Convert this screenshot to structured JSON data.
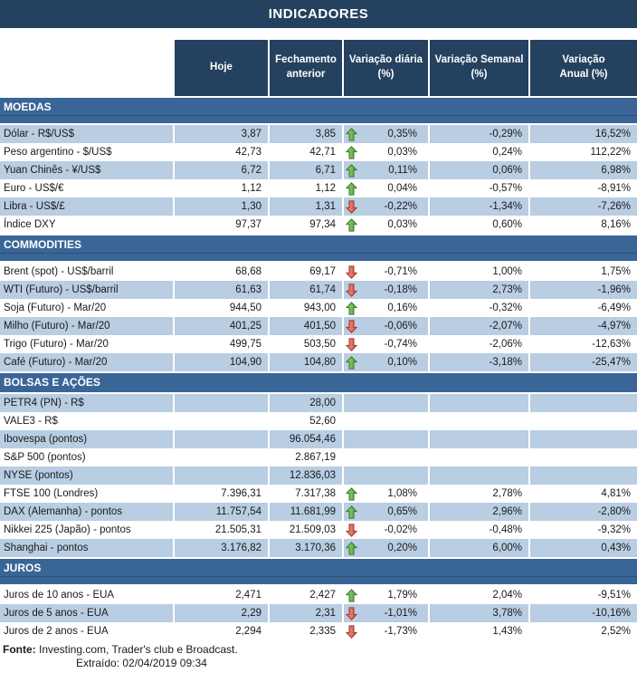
{
  "title": "INDICADORES",
  "columns": {
    "header_lines": [
      [
        "Hoje"
      ],
      [
        "Fechamento",
        "anterior"
      ],
      [
        "Variação diária",
        "(%)"
      ],
      [
        "Variação Semanal",
        "(%)"
      ],
      [
        "Variação",
        "Anual (%)"
      ]
    ]
  },
  "sections": [
    {
      "name": "MOEDAS",
      "first_row_shade": "blue",
      "rows": [
        {
          "label": "Dólar - R$/US$",
          "hoje": "3,87",
          "fechamento": "3,85",
          "arrow": "up",
          "diaria": "0,35%",
          "semanal": "-0,29%",
          "anual": "16,52%"
        },
        {
          "label": "Peso argentino - $/US$",
          "hoje": "42,73",
          "fechamento": "42,71",
          "arrow": "up",
          "diaria": "0,03%",
          "semanal": "0,24%",
          "anual": "112,22%"
        },
        {
          "label": "Yuan Chinês - ¥/US$",
          "hoje": "6,72",
          "fechamento": "6,71",
          "arrow": "up",
          "diaria": "0,11%",
          "semanal": "0,06%",
          "anual": "6,98%"
        },
        {
          "label": "Euro - US$/€",
          "hoje": "1,12",
          "fechamento": "1,12",
          "arrow": "up",
          "diaria": "0,04%",
          "semanal": "-0,57%",
          "anual": "-8,91%"
        },
        {
          "label": "Libra - US$/£",
          "hoje": "1,30",
          "fechamento": "1,31",
          "arrow": "down",
          "diaria": "-0,22%",
          "semanal": "-1,34%",
          "anual": "-7,26%"
        },
        {
          "label": "Índice DXY",
          "hoje": "97,37",
          "fechamento": "97,34",
          "arrow": "up",
          "diaria": "0,03%",
          "semanal": "0,60%",
          "anual": "8,16%"
        }
      ]
    },
    {
      "name": "COMMODITIES",
      "first_row_shade": "white",
      "rows": [
        {
          "label": "Brent (spot) - US$/barril",
          "hoje": "68,68",
          "fechamento": "69,17",
          "arrow": "down",
          "diaria": "-0,71%",
          "semanal": "1,00%",
          "anual": "1,75%"
        },
        {
          "label": "WTI (Futuro) - US$/barril",
          "hoje": "61,63",
          "fechamento": "61,74",
          "arrow": "down",
          "diaria": "-0,18%",
          "semanal": "2,73%",
          "anual": "-1,96%"
        },
        {
          "label": "Soja (Futuro) - Mar/20",
          "hoje": "944,50",
          "fechamento": "943,00",
          "arrow": "up",
          "diaria": "0,16%",
          "semanal": "-0,32%",
          "anual": "-6,49%"
        },
        {
          "label": "Milho (Futuro) - Mar/20",
          "hoje": "401,25",
          "fechamento": "401,50",
          "arrow": "down",
          "diaria": "-0,06%",
          "semanal": "-2,07%",
          "anual": "-4,97%"
        },
        {
          "label": "Trigo (Futuro) - Mar/20",
          "hoje": "499,75",
          "fechamento": "503,50",
          "arrow": "down",
          "diaria": "-0,74%",
          "semanal": "-2,06%",
          "anual": "-12,63%"
        },
        {
          "label": "Café (Futuro) - Mar/20",
          "hoje": "104,90",
          "fechamento": "104,80",
          "arrow": "up",
          "diaria": "0,10%",
          "semanal": "-3,18%",
          "anual": "-25,47%"
        }
      ]
    },
    {
      "name": "BOLSAS E AÇÕES",
      "first_row_shade": "blue",
      "rows": [
        {
          "label": "PETR4 (PN) - R$",
          "hoje": "",
          "fechamento": "28,00",
          "arrow": null,
          "diaria": "",
          "semanal": "",
          "anual": ""
        },
        {
          "label": "VALE3 - R$",
          "hoje": "",
          "fechamento": "52,60",
          "arrow": null,
          "diaria": "",
          "semanal": "",
          "anual": ""
        },
        {
          "label": "Ibovespa (pontos)",
          "hoje": "",
          "fechamento": "96.054,46",
          "arrow": null,
          "diaria": "",
          "semanal": "",
          "anual": ""
        },
        {
          "label": "S&P 500 (pontos)",
          "hoje": "",
          "fechamento": "2.867,19",
          "arrow": null,
          "diaria": "",
          "semanal": "",
          "anual": ""
        },
        {
          "label": "NYSE (pontos)",
          "hoje": "",
          "fechamento": "12.836,03",
          "arrow": null,
          "diaria": "",
          "semanal": "",
          "anual": ""
        },
        {
          "label": "FTSE 100 (Londres)",
          "hoje": "7.396,31",
          "fechamento": "7.317,38",
          "arrow": "up",
          "diaria": "1,08%",
          "semanal": "2,78%",
          "anual": "4,81%"
        },
        {
          "label": "DAX (Alemanha) - pontos",
          "hoje": "11.757,54",
          "fechamento": "11.681,99",
          "arrow": "up",
          "diaria": "0,65%",
          "semanal": "2,96%",
          "anual": "-2,80%"
        },
        {
          "label": "Nikkei 225 (Japão) - pontos",
          "hoje": "21.505,31",
          "fechamento": "21.509,03",
          "arrow": "down",
          "diaria": "-0,02%",
          "semanal": "-0,48%",
          "anual": "-9,32%"
        },
        {
          "label": "Shanghai - pontos",
          "hoje": "3.176,82",
          "fechamento": "3.170,36",
          "arrow": "up",
          "diaria": "0,20%",
          "semanal": "6,00%",
          "anual": "0,43%"
        }
      ]
    },
    {
      "name": "JUROS",
      "first_row_shade": "white",
      "rows": [
        {
          "label": "Juros de 10 anos - EUA",
          "hoje": "2,471",
          "fechamento": "2,427",
          "arrow": "up",
          "diaria": "1,79%",
          "semanal": "2,04%",
          "anual": "-9,51%"
        },
        {
          "label": "Juros de 5 anos - EUA",
          "hoje": "2,29",
          "fechamento": "2,31",
          "arrow": "down",
          "diaria": "-1,01%",
          "semanal": "3,78%",
          "anual": "-10,16%"
        },
        {
          "label": "Juros de 2 anos - EUA",
          "hoje": "2,294",
          "fechamento": "2,335",
          "arrow": "down",
          "diaria": "-1,73%",
          "semanal": "1,43%",
          "anual": "2,52%"
        }
      ]
    }
  ],
  "footer": {
    "fonte_label": "Fonte:",
    "fonte_text": "Investing.com, Trader's club e Broadcast.",
    "extraido_label": "Extraído:",
    "extraido_value": "02/04/2019 09:34"
  },
  "colors": {
    "header_navy": "#24425f",
    "section_steel": "#3a6597",
    "row_light_blue": "#b9cde3",
    "arrow_up_green": "#4c9f33",
    "arrow_down_red": "#cf4d3f"
  }
}
